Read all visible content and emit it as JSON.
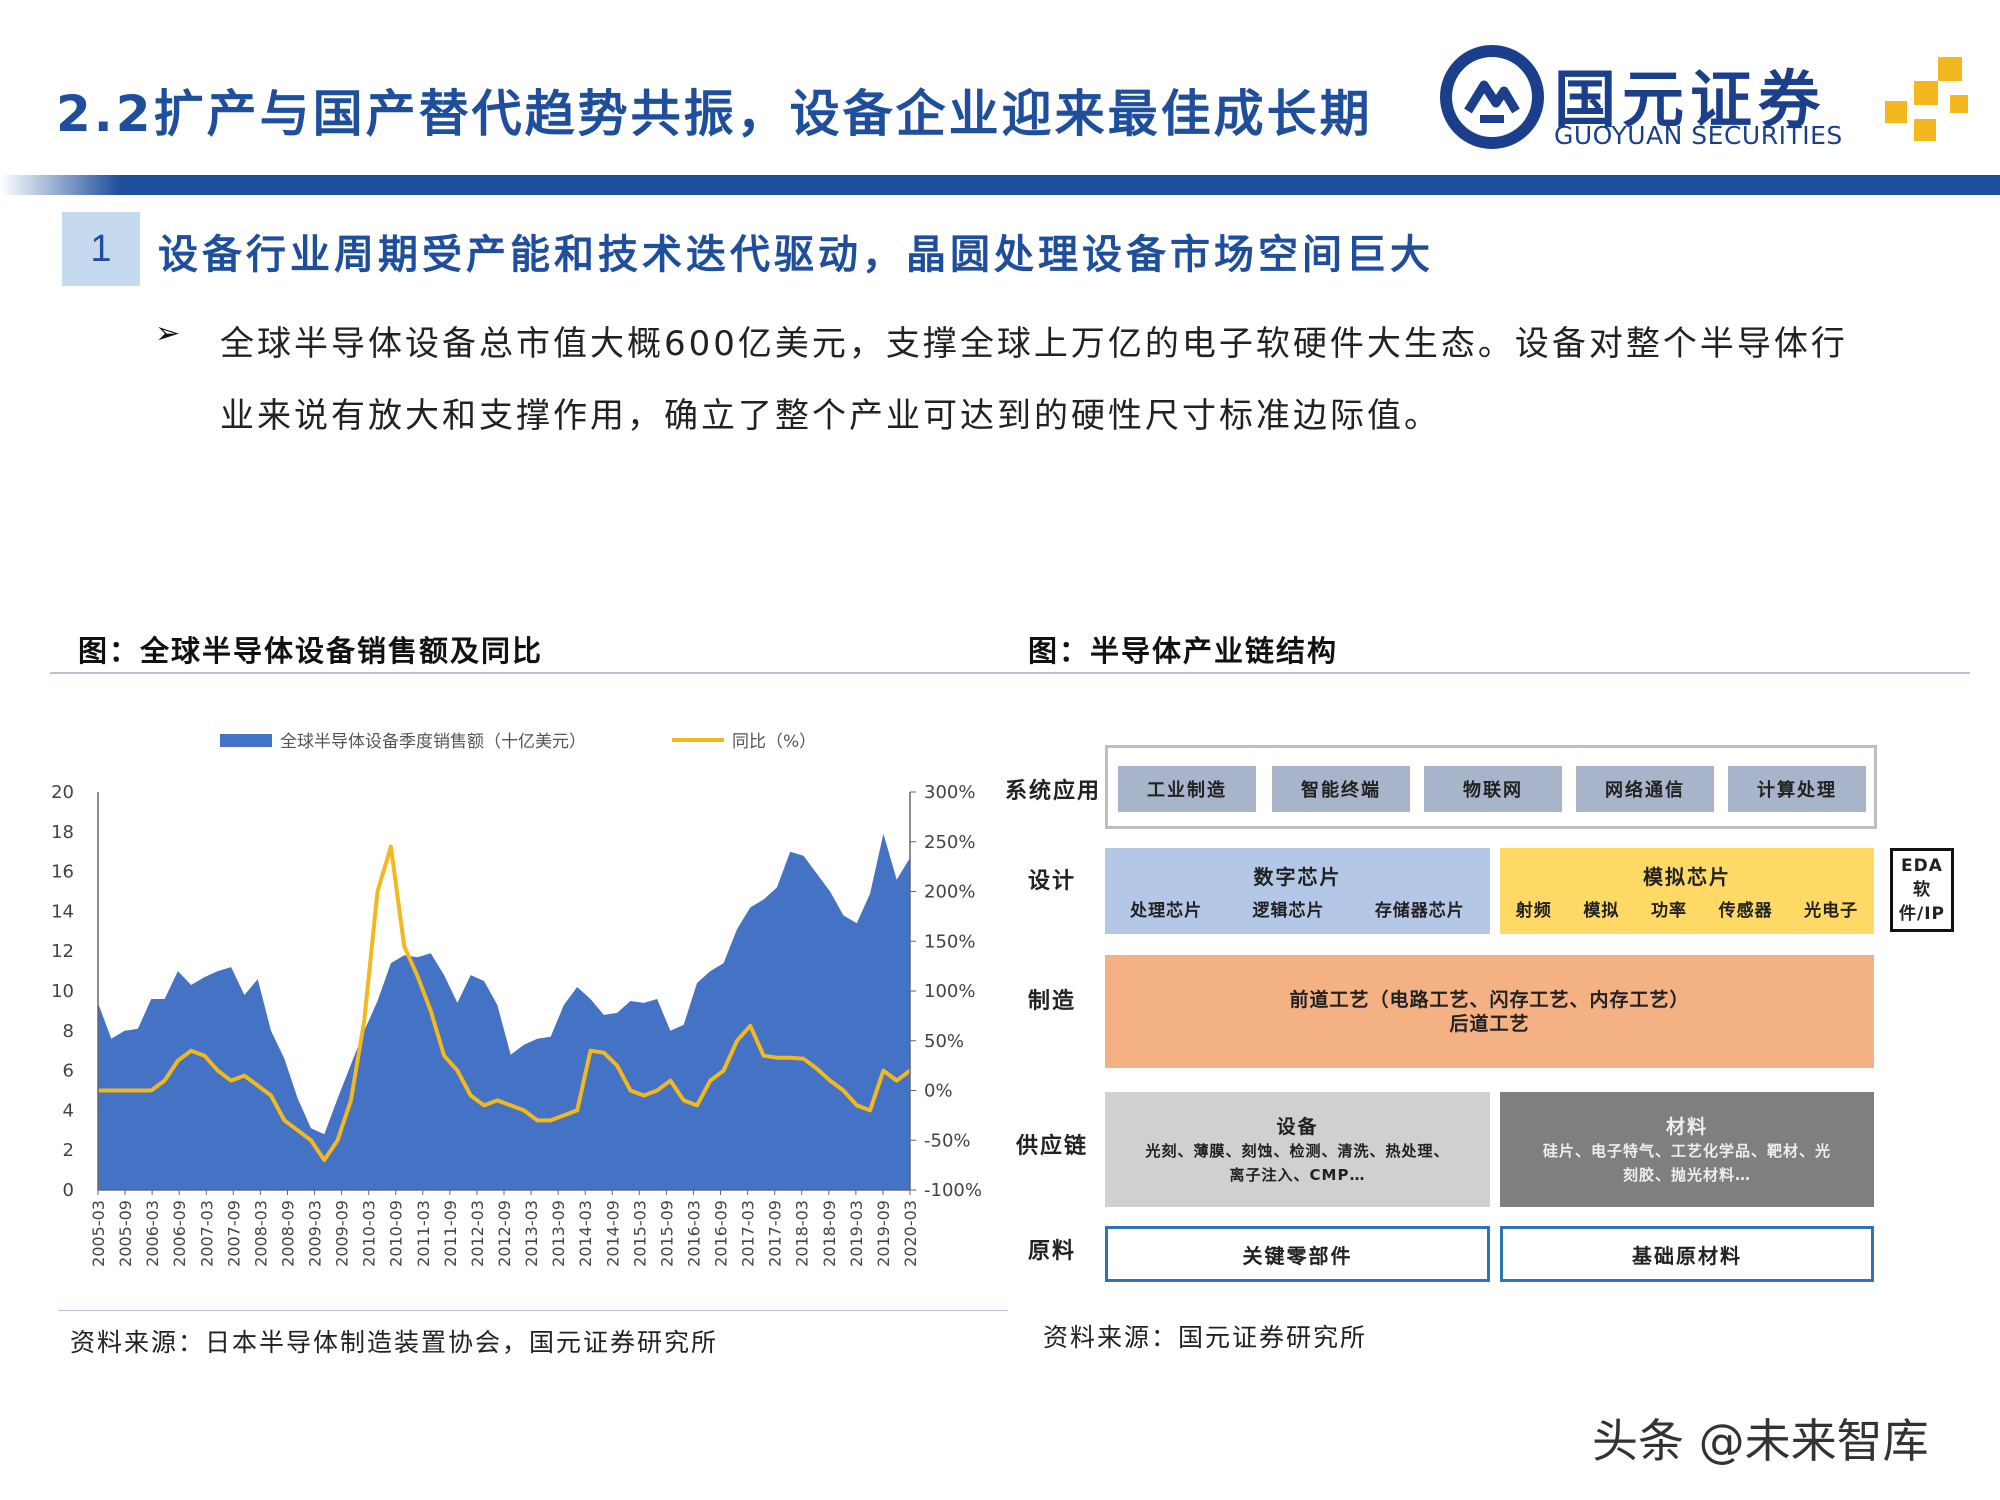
{
  "header": {
    "title": "2.2扩产与国产替代趋势共振，设备企业迎来最佳成长期",
    "logo_cn": "国元证券",
    "logo_en": "GUOYUAN SECURITIES",
    "brand_color": "#1f4e9c",
    "accent_color": "#f2b81e"
  },
  "section": {
    "number": "1",
    "title": "设备行业周期受产能和技术迭代驱动，晶圆处理设备市场空间巨大"
  },
  "body": {
    "bullet": "➢",
    "paragraph": "全球半导体设备总市值大概600亿美元，支撑全球上万亿的电子软硬件大生态。设备对整个半导体行业来说有放大和支撑作用，确立了整个产业可达到的硬性尺寸标准边际值。"
  },
  "left_figure": {
    "title": "图：全球半导体设备销售额及同比",
    "source": "资料来源：日本半导体制造装置协会，国元证券研究所"
  },
  "chart_data": {
    "type": "area",
    "series": [
      {
        "name": "全球半导体设备季度销售额（十亿美元）",
        "type": "area",
        "axis": "left",
        "color": "#4472c4"
      },
      {
        "name": "同比（%）",
        "type": "line",
        "axis": "right",
        "color": "#f2b81e"
      }
    ],
    "sales": [
      9.4,
      7.6,
      8.0,
      8.1,
      9.6,
      9.6,
      11.0,
      10.3,
      10.7,
      11.0,
      11.2,
      9.8,
      10.6,
      8.0,
      6.6,
      4.6,
      3.1,
      2.8,
      4.6,
      6.3,
      8.0,
      9.5,
      11.4,
      11.8,
      11.7,
      11.9,
      10.8,
      9.4,
      10.8,
      10.5,
      9.3,
      6.8,
      7.3,
      7.6,
      7.7,
      9.3,
      10.2,
      9.6,
      8.8,
      8.9,
      9.5,
      9.4,
      9.6,
      8.0,
      8.3,
      10.4,
      11.0,
      11.4,
      13.1,
      14.2,
      14.6,
      15.2,
      17.0,
      16.8,
      15.9,
      15.0,
      13.8,
      13.4,
      14.9,
      17.9,
      15.6,
      16.7
    ],
    "yoy": [
      0,
      0,
      0,
      0,
      0,
      10,
      30,
      40,
      35,
      20,
      10,
      15,
      5,
      -5,
      -30,
      -40,
      -50,
      -70,
      -50,
      -10,
      70,
      200,
      245,
      145,
      115,
      80,
      35,
      20,
      -5,
      -15,
      -10,
      -15,
      -20,
      -30,
      -30,
      -25,
      -20,
      40,
      38,
      25,
      0,
      -5,
      0,
      10,
      -10,
      -15,
      10,
      20,
      50,
      65,
      35,
      33,
      33,
      32,
      22,
      10,
      0,
      -15,
      -20,
      20,
      10,
      20
    ],
    "x_tick_labels": [
      "2005-03",
      "2005-09",
      "2006-03",
      "2006-09",
      "2007-03",
      "2007-09",
      "2008-03",
      "2008-09",
      "2009-03",
      "2009-09",
      "2010-03",
      "2010-09",
      "2011-03",
      "2011-09",
      "2012-03",
      "2012-09",
      "2013-03",
      "2013-09",
      "2014-03",
      "2014-09",
      "2015-03",
      "2015-09",
      "2016-03",
      "2016-09",
      "2017-03",
      "2017-09",
      "2018-03",
      "2018-09",
      "2019-03",
      "2019-09",
      "2020-03"
    ],
    "y_left_ticks": [
      "0",
      "2",
      "4",
      "6",
      "8",
      "10",
      "12",
      "14",
      "16",
      "18",
      "20"
    ],
    "y_right_ticks": [
      "-100%",
      "-50%",
      "0%",
      "50%",
      "100%",
      "150%",
      "200%",
      "250%",
      "300%"
    ],
    "ylim_left": [
      0,
      20
    ],
    "ylim_right": [
      -100,
      300
    ],
    "legend_position": "top"
  },
  "right_figure": {
    "title": "图：半导体产业链结构",
    "source": "资料来源：国元证券研究所",
    "rows": {
      "system": "系统应用",
      "design": "设计",
      "manufacturing": "制造",
      "supply": "供应链",
      "raw": "原料"
    },
    "system_apps": [
      "工业制造",
      "智能终端",
      "物联网",
      "网络通信",
      "计算处理"
    ],
    "digital": {
      "title": "数字芯片",
      "items": [
        "处理芯片",
        "逻辑芯片",
        "存储器芯片"
      ]
    },
    "analog": {
      "title": "模拟芯片",
      "items": [
        "射频",
        "模拟",
        "功率",
        "传感器",
        "光电子"
      ]
    },
    "eda": {
      "line1": "EDA软",
      "line2": "件/IP"
    },
    "manufacturing": {
      "line1": "前道工艺（电路工艺、闪存工艺、内存工艺）",
      "line2": "后道工艺"
    },
    "equipment": {
      "title": "设备",
      "line1": "光刻、薄膜、刻蚀、检测、清洗、热处理、",
      "line2": "离子注入、CMP…"
    },
    "materials": {
      "title": "材料",
      "line1": "硅片、电子特气、工艺化学品、靶材、光",
      "line2": "刻胶、抛光材料…"
    },
    "raw_boxes": [
      "关键零部件",
      "基础原材料"
    ],
    "colors": {
      "digital": "#b4c7e7",
      "analog": "#ffd966",
      "manufacturing": "#f4b183",
      "equipment": "#d0d0d0",
      "materials": "#7f7f7f",
      "raw_border": "#2e75b6"
    }
  },
  "watermark": "头条 @未来智库"
}
